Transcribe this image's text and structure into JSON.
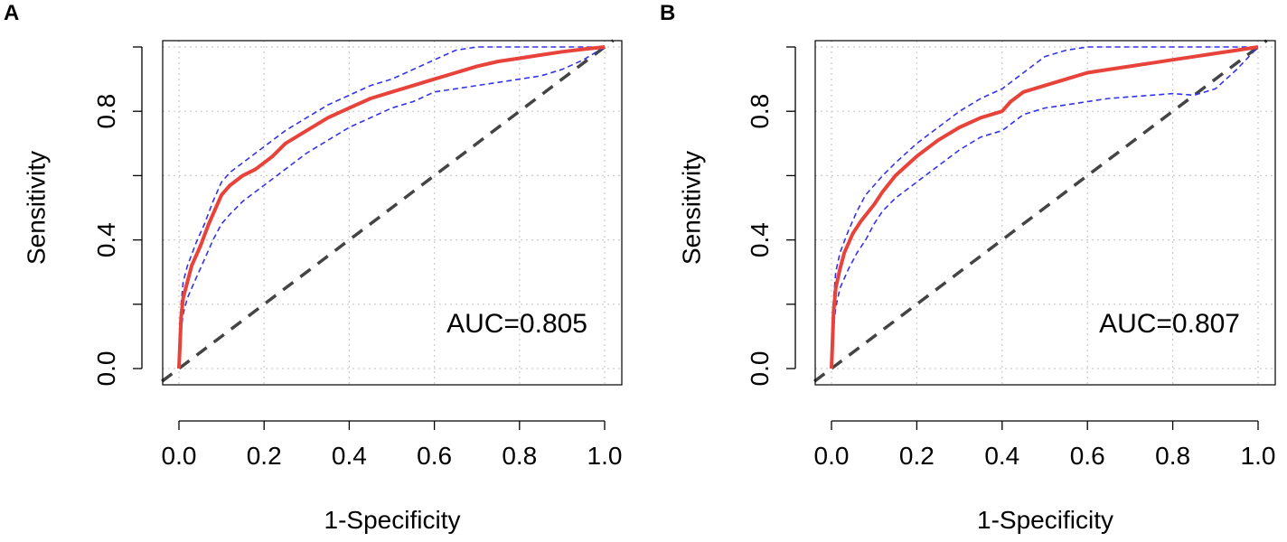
{
  "chart_data": [
    {
      "panel_label": "A",
      "type": "line",
      "xlabel": "1-Specificity",
      "ylabel": "Sensitivity",
      "xlim": [
        0,
        1
      ],
      "ylim": [
        0,
        1
      ],
      "x_ticks": [
        "0.0",
        "0.2",
        "0.4",
        "0.6",
        "0.8",
        "1.0"
      ],
      "y_ticks": [
        "0.0",
        "0.4",
        "0.8"
      ],
      "grid": true,
      "annotation": "AUC=0.805",
      "colors": {
        "roc": "#e8433a",
        "ci": "#3333ee",
        "ref": "#444444",
        "grid": "#cccccc"
      },
      "series": [
        {
          "name": "roc",
          "style": "solid",
          "x": [
            0,
            0.005,
            0.01,
            0.02,
            0.03,
            0.05,
            0.07,
            0.09,
            0.1,
            0.12,
            0.15,
            0.18,
            0.2,
            0.22,
            0.25,
            0.3,
            0.35,
            0.4,
            0.45,
            0.5,
            0.55,
            0.6,
            0.65,
            0.7,
            0.75,
            0.8,
            0.85,
            0.9,
            0.95,
            1.0
          ],
          "y": [
            0,
            0.16,
            0.22,
            0.27,
            0.32,
            0.38,
            0.45,
            0.51,
            0.54,
            0.57,
            0.6,
            0.62,
            0.64,
            0.66,
            0.7,
            0.74,
            0.78,
            0.81,
            0.84,
            0.86,
            0.88,
            0.9,
            0.92,
            0.94,
            0.955,
            0.965,
            0.975,
            0.985,
            0.993,
            1.0
          ]
        },
        {
          "name": "ci-upper",
          "style": "dashed",
          "x": [
            0,
            0.005,
            0.01,
            0.02,
            0.04,
            0.06,
            0.08,
            0.1,
            0.12,
            0.15,
            0.18,
            0.2,
            0.25,
            0.3,
            0.35,
            0.4,
            0.45,
            0.5,
            0.55,
            0.6,
            0.65,
            0.7,
            0.8,
            0.9,
            1.0
          ],
          "y": [
            0,
            0.2,
            0.27,
            0.32,
            0.39,
            0.45,
            0.52,
            0.58,
            0.61,
            0.64,
            0.67,
            0.69,
            0.74,
            0.78,
            0.82,
            0.85,
            0.88,
            0.9,
            0.93,
            0.96,
            0.99,
            1.0,
            1.0,
            1.0,
            1.0
          ]
        },
        {
          "name": "ci-lower",
          "style": "dashed",
          "x": [
            0,
            0.005,
            0.01,
            0.02,
            0.04,
            0.06,
            0.08,
            0.1,
            0.12,
            0.15,
            0.2,
            0.25,
            0.3,
            0.35,
            0.4,
            0.45,
            0.5,
            0.55,
            0.6,
            0.65,
            0.7,
            0.75,
            0.8,
            0.85,
            0.9,
            0.95,
            1.0
          ],
          "y": [
            0,
            0.12,
            0.17,
            0.22,
            0.28,
            0.34,
            0.4,
            0.45,
            0.48,
            0.52,
            0.57,
            0.62,
            0.67,
            0.71,
            0.75,
            0.78,
            0.81,
            0.83,
            0.86,
            0.87,
            0.88,
            0.89,
            0.9,
            0.91,
            0.93,
            0.96,
            1.0
          ]
        },
        {
          "name": "reference",
          "style": "dashed",
          "x": [
            -0.04,
            1.02
          ],
          "y": [
            -0.04,
            1.02
          ]
        }
      ]
    },
    {
      "panel_label": "B",
      "type": "line",
      "xlabel": "1-Specificity",
      "ylabel": "Sensitivity",
      "xlim": [
        0,
        1
      ],
      "ylim": [
        0,
        1
      ],
      "x_ticks": [
        "0.0",
        "0.2",
        "0.4",
        "0.6",
        "0.8",
        "1.0"
      ],
      "y_ticks": [
        "0.0",
        "0.4",
        "0.8"
      ],
      "grid": true,
      "annotation": "AUC=0.807",
      "colors": {
        "roc": "#e8433a",
        "ci": "#3333ee",
        "ref": "#444444",
        "grid": "#cccccc"
      },
      "series": [
        {
          "name": "roc",
          "style": "solid",
          "x": [
            0,
            0.005,
            0.01,
            0.02,
            0.03,
            0.05,
            0.07,
            0.1,
            0.12,
            0.15,
            0.2,
            0.25,
            0.3,
            0.35,
            0.4,
            0.42,
            0.45,
            0.5,
            0.55,
            0.6,
            0.65,
            0.7,
            0.75,
            0.8,
            0.85,
            0.9,
            0.95,
            1.0
          ],
          "y": [
            0,
            0.18,
            0.25,
            0.31,
            0.36,
            0.42,
            0.46,
            0.51,
            0.55,
            0.6,
            0.66,
            0.71,
            0.75,
            0.78,
            0.8,
            0.83,
            0.86,
            0.88,
            0.9,
            0.92,
            0.93,
            0.94,
            0.95,
            0.96,
            0.97,
            0.98,
            0.99,
            1.0
          ]
        },
        {
          "name": "ci-upper",
          "style": "dashed",
          "x": [
            0,
            0.005,
            0.01,
            0.02,
            0.04,
            0.06,
            0.08,
            0.1,
            0.12,
            0.15,
            0.2,
            0.25,
            0.3,
            0.35,
            0.4,
            0.45,
            0.5,
            0.55,
            0.6,
            0.7,
            0.8,
            0.9,
            1.0
          ],
          "y": [
            0,
            0.22,
            0.3,
            0.36,
            0.43,
            0.49,
            0.54,
            0.57,
            0.6,
            0.64,
            0.7,
            0.75,
            0.8,
            0.84,
            0.87,
            0.92,
            0.97,
            0.99,
            1.0,
            1.0,
            1.0,
            1.0,
            1.0
          ]
        },
        {
          "name": "ci-lower",
          "style": "dashed",
          "x": [
            0,
            0.005,
            0.01,
            0.02,
            0.04,
            0.06,
            0.08,
            0.1,
            0.12,
            0.15,
            0.2,
            0.25,
            0.3,
            0.35,
            0.4,
            0.45,
            0.5,
            0.55,
            0.6,
            0.65,
            0.7,
            0.75,
            0.8,
            0.85,
            0.9,
            0.95,
            1.0
          ],
          "y": [
            0,
            0.13,
            0.19,
            0.25,
            0.31,
            0.36,
            0.4,
            0.45,
            0.49,
            0.53,
            0.58,
            0.63,
            0.68,
            0.72,
            0.74,
            0.79,
            0.81,
            0.82,
            0.83,
            0.84,
            0.845,
            0.85,
            0.855,
            0.85,
            0.87,
            0.93,
            1.0
          ]
        },
        {
          "name": "reference",
          "style": "dashed",
          "x": [
            -0.04,
            1.02
          ],
          "y": [
            -0.04,
            1.02
          ]
        }
      ]
    }
  ]
}
